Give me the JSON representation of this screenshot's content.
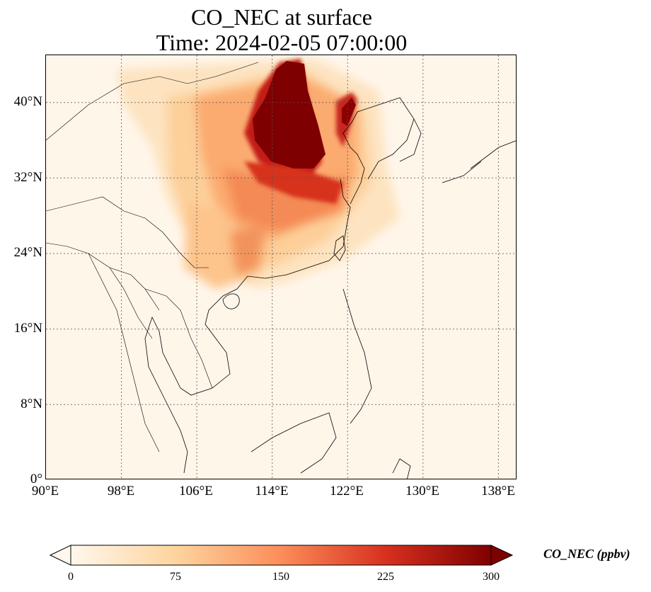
{
  "title": {
    "line1": "CO_NEC at surface",
    "line2": "Time: 2024-02-05 07:00:00"
  },
  "map": {
    "projection": "PlateCarree",
    "lon_range": [
      90,
      140
    ],
    "lat_range": [
      0,
      45
    ],
    "gridlines": "dotted",
    "coastlines": true,
    "borders": true,
    "field": "CO_NEC concentration (ppbv)",
    "hotspot": "North China Plain (~112-118E, 35-44N) saturated above 300 ppbv"
  },
  "axes": {
    "lat_ticks": [
      "40°N",
      "32°N",
      "24°N",
      "16°N",
      "8°N",
      "0°"
    ],
    "lon_ticks": [
      "90°E",
      "98°E",
      "106°E",
      "114°E",
      "122°E",
      "130°E",
      "138°E"
    ]
  },
  "colorbar": {
    "colormap": "OrRd",
    "min": 0,
    "max": 300,
    "extend": "both",
    "ticks": [
      "0",
      "75",
      "150",
      "225",
      "300"
    ],
    "label": "CO_NEC (ppbv)",
    "colors": [
      "#fff7ec",
      "#fdd49e",
      "#fc8d59",
      "#d7301f",
      "#7f0000"
    ]
  }
}
